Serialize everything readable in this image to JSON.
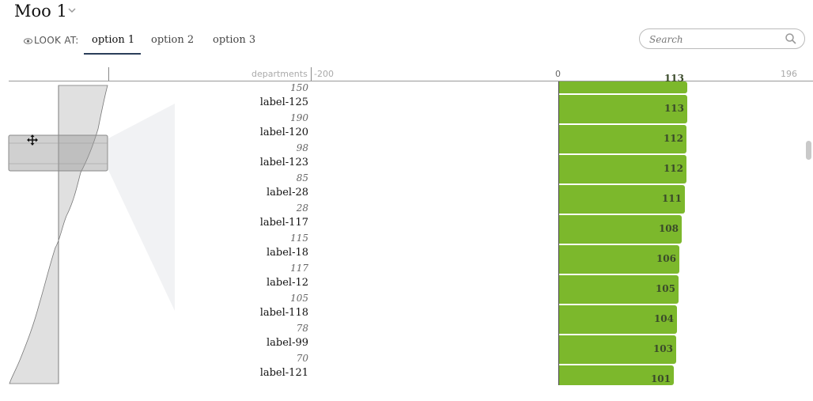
{
  "header": {
    "title": "Moo 1"
  },
  "lookat": {
    "label": "LOOK AT:",
    "tabs": [
      {
        "label": "option 1",
        "active": true
      },
      {
        "label": "option 2",
        "active": false
      },
      {
        "label": "option 3",
        "active": false
      }
    ]
  },
  "search": {
    "placeholder": "Search"
  },
  "axis": {
    "name": "departments",
    "min_label": "-200",
    "zero_label": "0",
    "max_label": "196"
  },
  "colors": {
    "bar": "#7cb82c",
    "tab_underline": "#2b3e59"
  },
  "icons": [
    "chevron-down-icon",
    "eye-icon",
    "search-icon",
    "move-icon"
  ],
  "rows": [
    {
      "label": "",
      "sub": "150",
      "value": 113
    },
    {
      "label": "label-125",
      "sub": "190",
      "value": 113
    },
    {
      "label": "label-120",
      "sub": "98",
      "value": 112
    },
    {
      "label": "label-123",
      "sub": "85",
      "value": 112
    },
    {
      "label": "label-28",
      "sub": "28",
      "value": 111
    },
    {
      "label": "label-117",
      "sub": "115",
      "value": 108
    },
    {
      "label": "label-18",
      "sub": "117",
      "value": 106
    },
    {
      "label": "label-12",
      "sub": "105",
      "value": 105
    },
    {
      "label": "label-118",
      "sub": "78",
      "value": 104
    },
    {
      "label": "label-99",
      "sub": "70",
      "value": 103
    },
    {
      "label": "label-121",
      "sub": "",
      "value": 101
    }
  ]
}
